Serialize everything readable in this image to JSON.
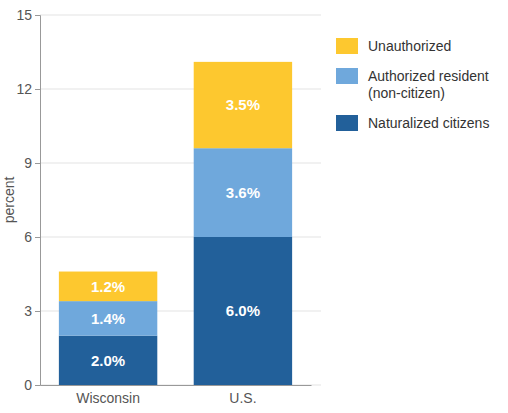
{
  "chart_data": {
    "type": "bar",
    "stacked": true,
    "data_labels": true,
    "grid": true,
    "legend": "top-right",
    "y_label": "percent",
    "categories": [
      "Wisconsin",
      "U.S."
    ],
    "series": [
      {
        "name": "Naturalized citizens",
        "color": "#22609a",
        "values": [
          2.0,
          6.0
        ],
        "value_labels": [
          "2.0%",
          "6.0%"
        ]
      },
      {
        "name": "Authorized resident (non-citizen)",
        "color": "#6fa8dc",
        "values": [
          1.4,
          3.6
        ],
        "value_labels": [
          "1.4%",
          "3.6%"
        ]
      },
      {
        "name": "Unauthorized",
        "color": "#fdc82f",
        "values": [
          1.2,
          3.5
        ],
        "value_labels": [
          "1.2%",
          "3.5%"
        ]
      }
    ],
    "ylim": [
      0,
      15
    ],
    "yticks": [
      0,
      3,
      6,
      9,
      12,
      15
    ]
  }
}
